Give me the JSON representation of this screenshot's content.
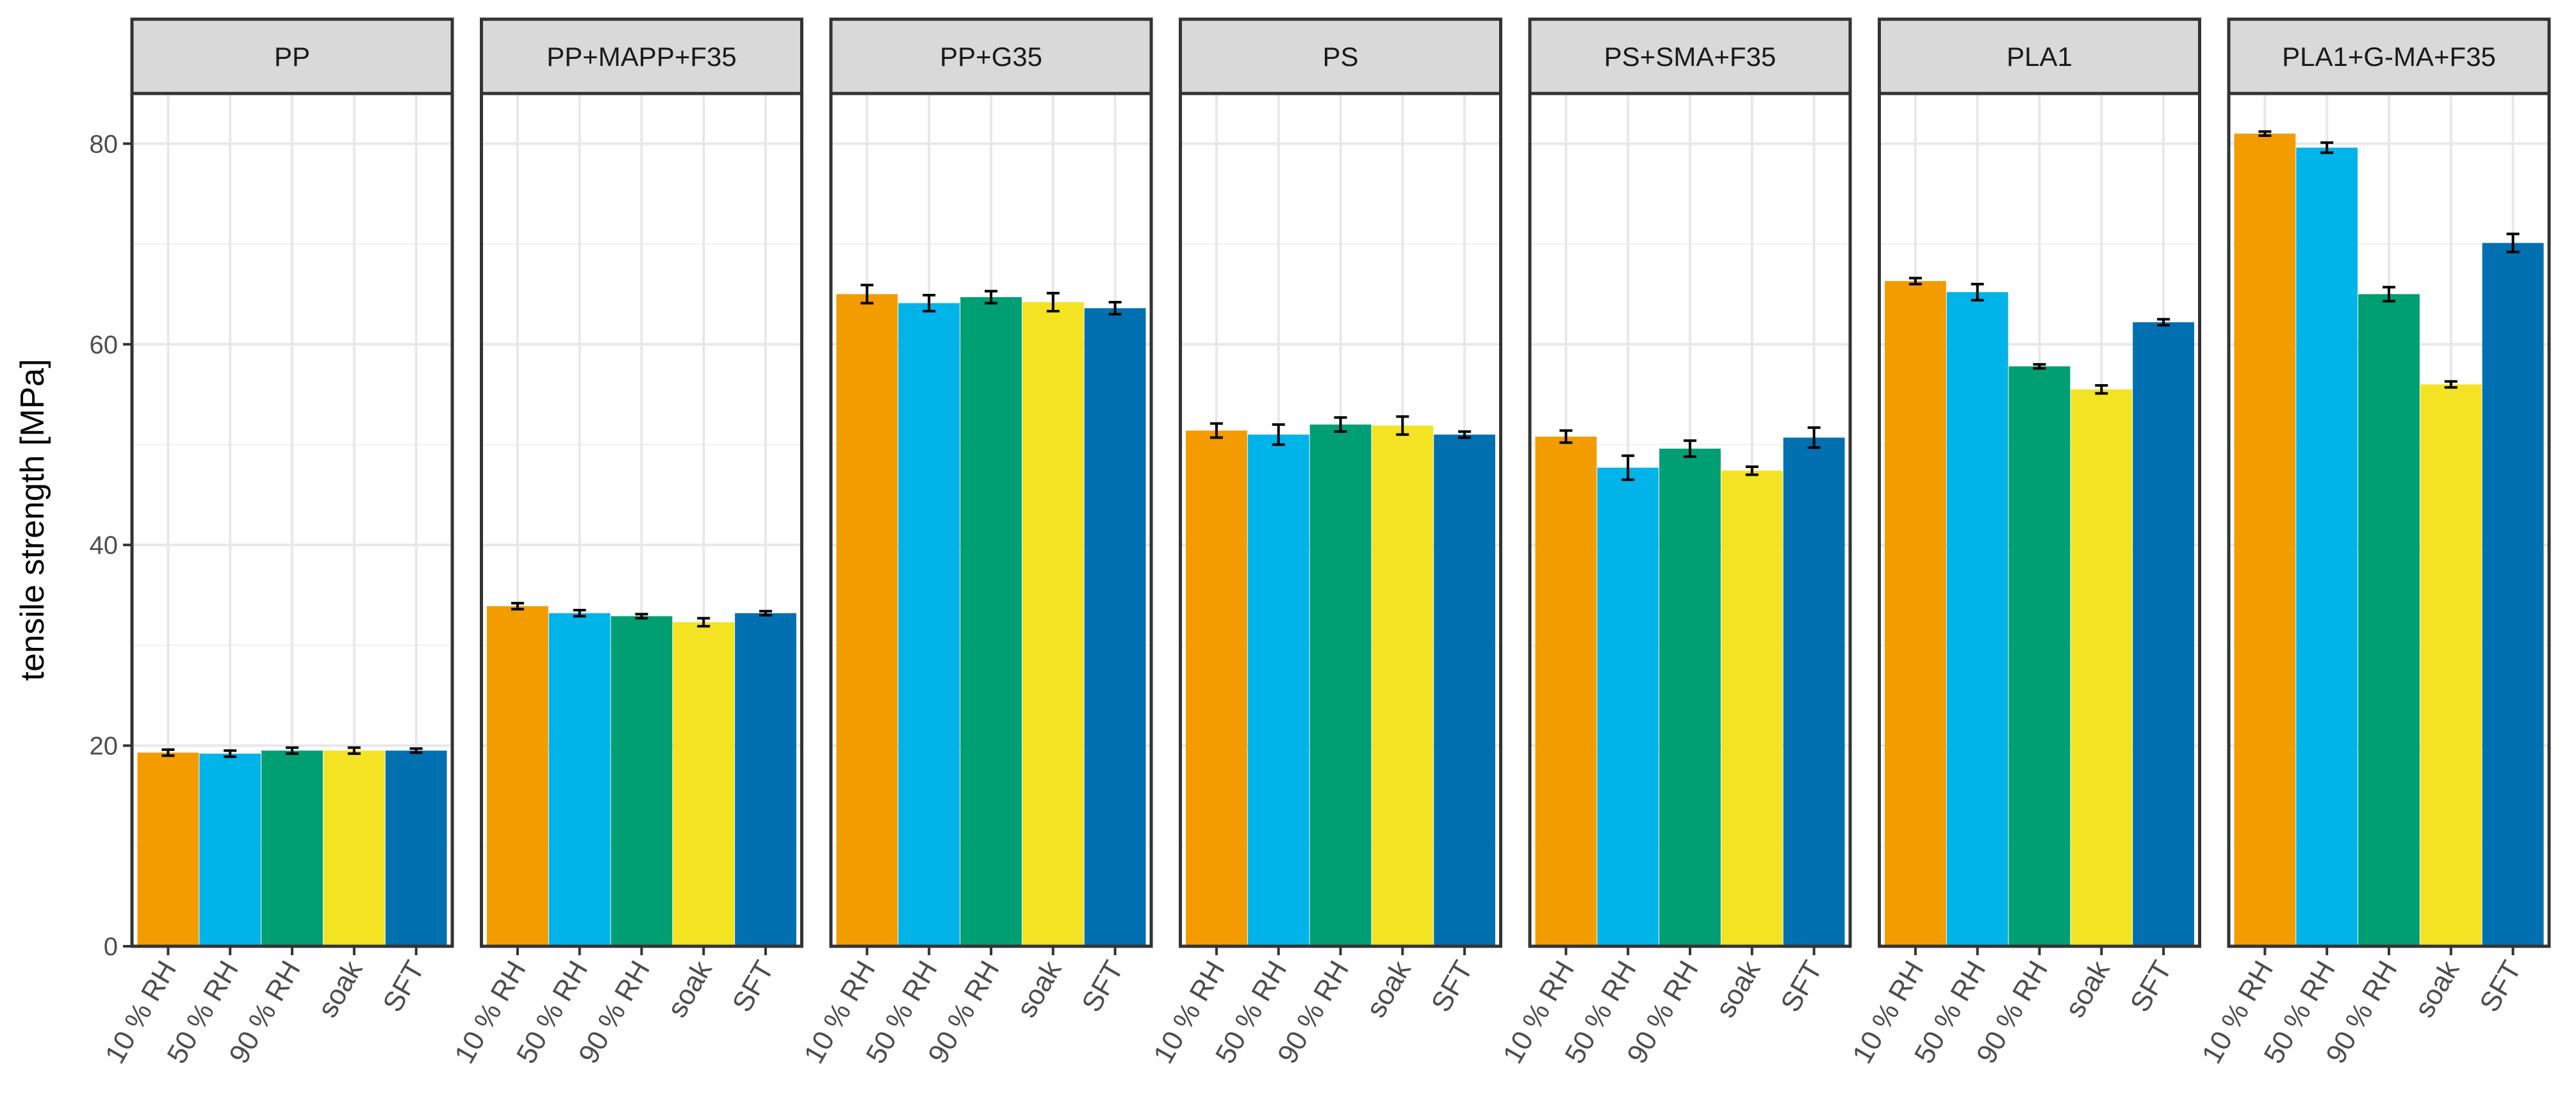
{
  "chart_data": {
    "type": "bar",
    "layout": "faceted",
    "ylabel": "tensile strength [MPa]",
    "xlabel": "",
    "ylim": [
      0,
      85
    ],
    "yticks": [
      0,
      20,
      40,
      60,
      80
    ],
    "grid": true,
    "legend": "none",
    "categories": [
      "10 % RH",
      "50 % RH",
      "90 % RH",
      "soak",
      "SFT"
    ],
    "colors": [
      "#F39C00",
      "#00B3E8",
      "#009E73",
      "#F3E322",
      "#0070B0"
    ],
    "facets": [
      {
        "title": "PP",
        "values": [
          19.3,
          19.2,
          19.5,
          19.5,
          19.5
        ],
        "errors": [
          0.3,
          0.3,
          0.3,
          0.3,
          0.2
        ]
      },
      {
        "title": "PP+MAPP+F35",
        "values": [
          33.9,
          33.2,
          32.9,
          32.3,
          33.2
        ],
        "errors": [
          0.3,
          0.3,
          0.2,
          0.4,
          0.2
        ]
      },
      {
        "title": "PP+G35",
        "values": [
          65.0,
          64.1,
          64.7,
          64.2,
          63.6
        ],
        "errors": [
          0.9,
          0.8,
          0.6,
          0.9,
          0.6
        ]
      },
      {
        "title": "PS",
        "values": [
          51.4,
          51.0,
          52.0,
          51.9,
          51.0
        ],
        "errors": [
          0.7,
          1.0,
          0.7,
          0.9,
          0.3
        ]
      },
      {
        "title": "PS+SMA+F35",
        "values": [
          50.8,
          47.7,
          49.6,
          47.4,
          50.7
        ],
        "errors": [
          0.6,
          1.2,
          0.8,
          0.4,
          1.0
        ]
      },
      {
        "title": "PLA1",
        "values": [
          66.3,
          65.2,
          57.8,
          55.5,
          62.2
        ],
        "errors": [
          0.3,
          0.8,
          0.2,
          0.4,
          0.3
        ]
      },
      {
        "title": "PLA1+G-MA+F35",
        "values": [
          81.0,
          79.6,
          65.0,
          56.0,
          70.1
        ],
        "errors": [
          0.2,
          0.5,
          0.7,
          0.3,
          0.9
        ]
      }
    ]
  }
}
